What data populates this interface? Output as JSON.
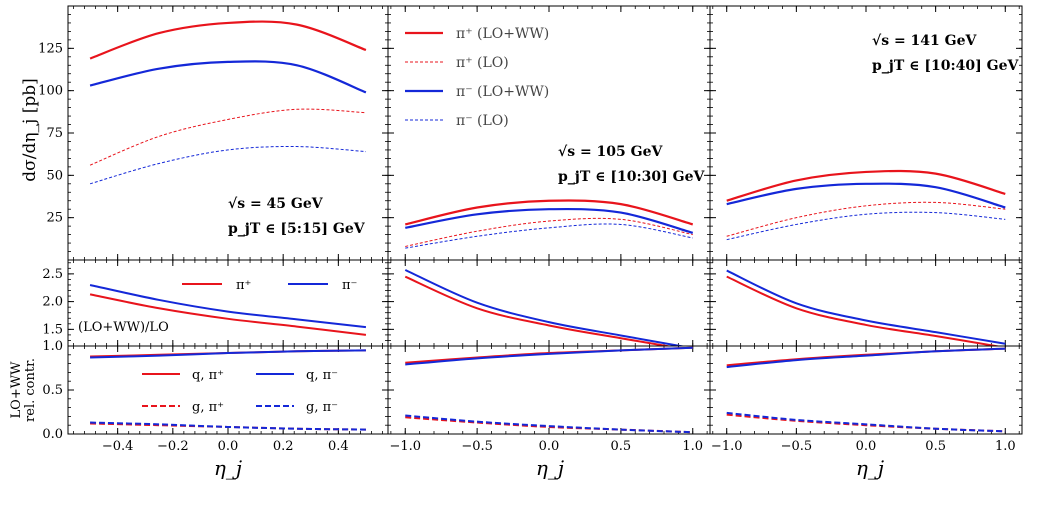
{
  "chart_data": {
    "type": "line",
    "grid": false,
    "colors": {
      "pi_plus": "#e8141c",
      "pi_minus": "#1428d8"
    },
    "row_labels": {
      "top": "dσ/dη_j [pb]",
      "ratio": "(LO+WW)/LO",
      "contr_line1": "LO+WW",
      "contr_line2": "rel. contr."
    },
    "xlabel": "η_j",
    "legends": {
      "top": [
        "π⁺ (LO+WW)",
        "π⁺ (LO)",
        "π⁻ (LO+WW)",
        "π⁻ (LO)"
      ],
      "ratio": [
        "π⁺",
        "π⁻"
      ],
      "contr": [
        "q, π⁺",
        "q, π⁻",
        "g, π⁺",
        "g, π⁻"
      ]
    },
    "columns": [
      {
        "sqrt_s": "√s = 45 GeV",
        "pt_range": "p_jT ∈ [5:15] GeV",
        "x": [
          -0.5,
          -0.25,
          0.0,
          0.25,
          0.5
        ],
        "xlim": [
          -0.58,
          0.58
        ],
        "xticks": [
          -0.4,
          -0.2,
          0.0,
          0.2,
          0.4
        ],
        "xtick_labels": [
          "−0.4",
          "−0.2",
          "0.0",
          "0.2",
          "0.4"
        ],
        "top": [
          {
            "name": "π⁺ (LO+WW)",
            "values": [
              119,
              134,
              140,
              139,
              124
            ]
          },
          {
            "name": "π⁻ (LO+WW)",
            "values": [
              103,
              113,
              117,
              115,
              99
            ]
          },
          {
            "name": "π⁺ (LO)",
            "values": [
              56,
              73,
              83,
              89,
              87
            ]
          },
          {
            "name": "π⁻ (LO)",
            "values": [
              45,
              57,
              65,
              67,
              64
            ]
          }
        ],
        "ratio": [
          {
            "name": "π⁺",
            "values": [
              2.13,
              1.88,
              1.69,
              1.55,
              1.4
            ]
          },
          {
            "name": "π⁻",
            "values": [
              2.3,
              2.03,
              1.82,
              1.68,
              1.54
            ]
          }
        ],
        "contr": [
          {
            "name": "q, π⁺",
            "values": [
              0.88,
              0.9,
              0.92,
              0.94,
              0.95
            ]
          },
          {
            "name": "q, π⁻",
            "values": [
              0.87,
              0.89,
              0.92,
              0.94,
              0.95
            ]
          },
          {
            "name": "g, π⁺",
            "values": [
              0.12,
              0.1,
              0.08,
              0.06,
              0.05
            ]
          },
          {
            "name": "g, π⁻",
            "values": [
              0.13,
              0.11,
              0.08,
              0.06,
              0.05
            ]
          }
        ]
      },
      {
        "sqrt_s": "√s = 105 GeV",
        "pt_range": "p_jT ∈ [10:30] GeV",
        "x": [
          -1.0,
          -0.5,
          0.0,
          0.5,
          1.0
        ],
        "xlim": [
          -1.12,
          1.12
        ],
        "xticks": [
          -1.0,
          -0.5,
          0.0,
          0.5,
          1.0
        ],
        "xtick_labels": [
          "−1.0",
          "−0.5",
          "0.0",
          "0.5",
          "1.0"
        ],
        "top": [
          {
            "name": "π⁺ (LO+WW)",
            "values": [
              21,
              31,
              35,
              33,
              21
            ]
          },
          {
            "name": "π⁻ (LO+WW)",
            "values": [
              19,
              27,
              30,
              28,
              16
            ]
          },
          {
            "name": "π⁺ (LO)",
            "values": [
              8,
              17,
              23,
              24,
              15
            ]
          },
          {
            "name": "π⁻ (LO)",
            "values": [
              7,
              14,
              19,
              21,
              13
            ]
          }
        ],
        "ratio": [
          {
            "name": "π⁺",
            "values": [
              2.45,
              1.88,
              1.57,
              1.34,
              1.12
            ]
          },
          {
            "name": "π⁻",
            "values": [
              2.57,
              1.98,
              1.63,
              1.39,
              1.16
            ]
          }
        ],
        "contr": [
          {
            "name": "q, π⁺",
            "values": [
              0.81,
              0.87,
              0.92,
              0.95,
              0.98
            ]
          },
          {
            "name": "q, π⁻",
            "values": [
              0.79,
              0.86,
              0.91,
              0.95,
              0.98
            ]
          },
          {
            "name": "g, π⁺",
            "values": [
              0.19,
              0.13,
              0.08,
              0.05,
              0.02
            ]
          },
          {
            "name": "g, π⁻",
            "values": [
              0.21,
              0.14,
              0.09,
              0.05,
              0.02
            ]
          }
        ]
      },
      {
        "sqrt_s": "√s = 141 GeV",
        "pt_range": "p_jT ∈ [10:40] GeV",
        "x": [
          -1.0,
          -0.5,
          0.0,
          0.5,
          1.0
        ],
        "xlim": [
          -1.12,
          1.12
        ],
        "xticks": [
          -1.0,
          -0.5,
          0.0,
          0.5,
          1.0
        ],
        "xtick_labels": [
          "−1.0",
          "−0.5",
          "0.0",
          "0.5",
          "1.0"
        ],
        "top": [
          {
            "name": "π⁺ (LO+WW)",
            "values": [
              35,
              47,
              52,
              51,
              39
            ]
          },
          {
            "name": "π⁻ (LO+WW)",
            "values": [
              33,
              42,
              45,
              43,
              31
            ]
          },
          {
            "name": "π⁺ (LO)",
            "values": [
              14,
              25,
              32,
              34,
              30
            ]
          },
          {
            "name": "π⁻ (LO)",
            "values": [
              12,
              21,
              27,
              28,
              24
            ]
          }
        ],
        "ratio": [
          {
            "name": "π⁺",
            "values": [
              2.45,
              1.88,
              1.58,
              1.38,
              1.17
            ]
          },
          {
            "name": "π⁻",
            "values": [
              2.56,
              1.97,
              1.66,
              1.45,
              1.24
            ]
          }
        ],
        "contr": [
          {
            "name": "q, π⁺",
            "values": [
              0.78,
              0.85,
              0.9,
              0.94,
              0.97
            ]
          },
          {
            "name": "q, π⁻",
            "values": [
              0.76,
              0.84,
              0.89,
              0.94,
              0.97
            ]
          },
          {
            "name": "g, π⁺",
            "values": [
              0.22,
              0.15,
              0.1,
              0.06,
              0.03
            ]
          },
          {
            "name": "g, π⁻",
            "values": [
              0.24,
              0.16,
              0.11,
              0.06,
              0.03
            ]
          }
        ]
      }
    ],
    "rows": {
      "top": {
        "ylim": [
          0,
          150
        ],
        "yticks": [
          25,
          50,
          75,
          100,
          125
        ],
        "ytick_labels": [
          "25",
          "50",
          "75",
          "100",
          "125"
        ]
      },
      "ratio": {
        "ylim": [
          1.2,
          2.75
        ],
        "yticks": [
          1.5,
          2.0,
          2.5
        ],
        "ytick_labels": [
          "1.5",
          "2.0",
          "2.5"
        ]
      },
      "contr": {
        "ylim": [
          0.0,
          1.0
        ],
        "yticks": [
          0.0,
          0.5,
          1.0
        ],
        "ytick_labels": [
          "0.0",
          "0.5",
          "1.0"
        ]
      }
    }
  }
}
